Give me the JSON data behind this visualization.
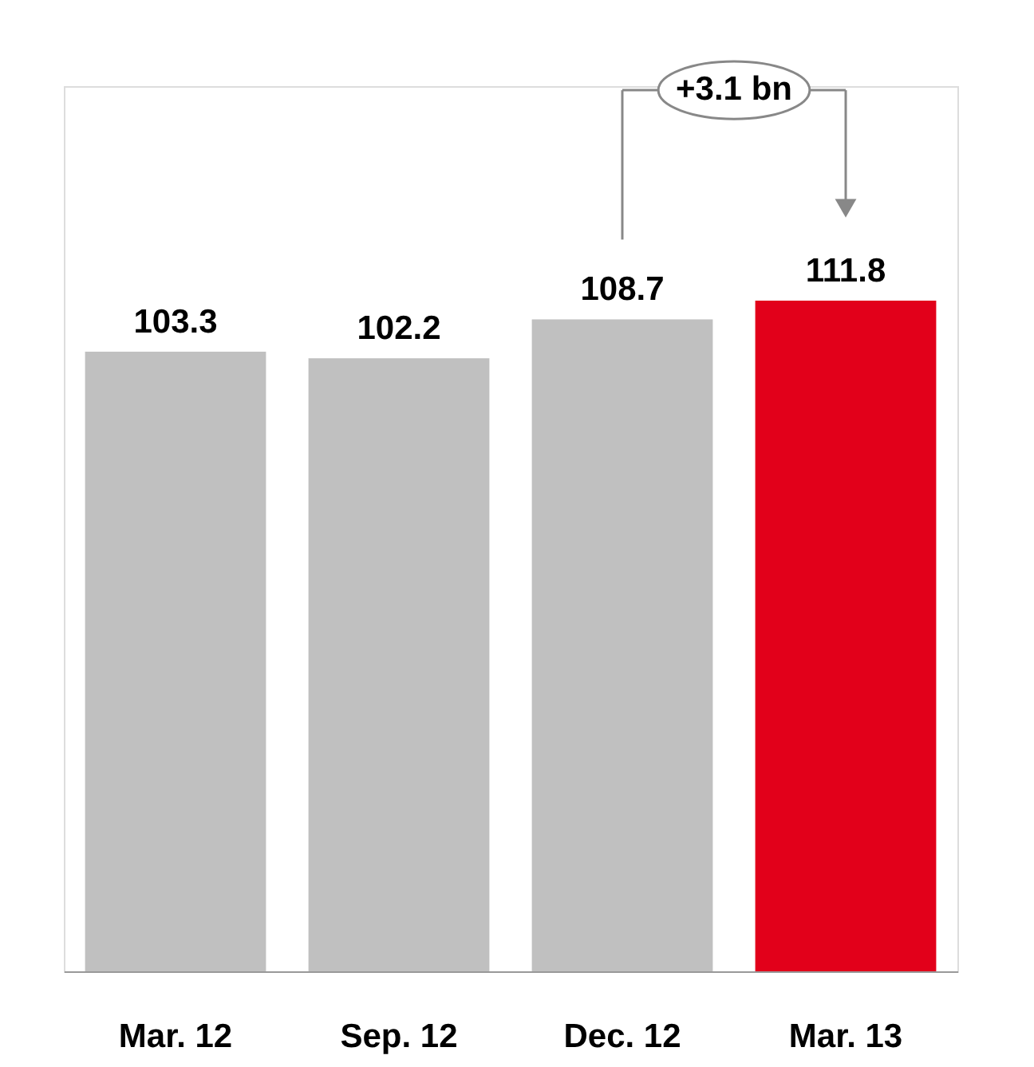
{
  "chart_data": {
    "type": "bar",
    "categories": [
      "Mar. 12",
      "Sep. 12",
      "Dec. 12",
      "Mar. 13"
    ],
    "values": [
      103.3,
      102.2,
      108.7,
      111.8
    ],
    "colors": [
      "#c0c0c0",
      "#c0c0c0",
      "#c0c0c0",
      "#e2001a"
    ],
    "data_labels": true,
    "annotations": [
      "+3.1 bn"
    ],
    "grid": false
  }
}
